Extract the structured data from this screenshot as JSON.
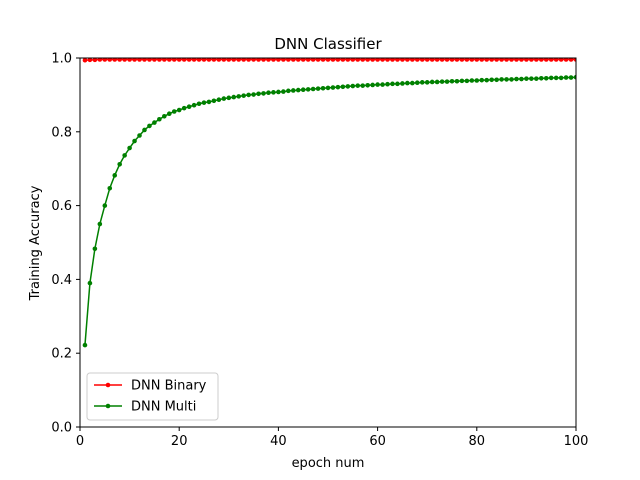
{
  "chart_data": {
    "type": "line",
    "title": "DNN Classifier",
    "xlabel": "epoch num",
    "ylabel": "Training Accuracy",
    "xlim": [
      0,
      100
    ],
    "ylim": [
      0.0,
      1.0
    ],
    "xticks": [
      "0",
      "20",
      "40",
      "60",
      "80",
      "100"
    ],
    "xtick_values": [
      0,
      20,
      40,
      60,
      80,
      100
    ],
    "yticks": [
      "0.0",
      "0.2",
      "0.4",
      "0.6",
      "0.8",
      "1.0"
    ],
    "ytick_values": [
      0.0,
      0.2,
      0.4,
      0.6,
      0.8,
      1.0
    ],
    "grid": false,
    "legend_position": "lower-left",
    "series": [
      {
        "name": "DNN Binary",
        "color": "#ff0000",
        "marker": "circle",
        "x": [
          1,
          2,
          3,
          4,
          5,
          6,
          7,
          8,
          9,
          10,
          11,
          12,
          13,
          14,
          15,
          16,
          17,
          18,
          19,
          20,
          21,
          22,
          23,
          24,
          25,
          26,
          27,
          28,
          29,
          30,
          31,
          32,
          33,
          34,
          35,
          36,
          37,
          38,
          39,
          40,
          41,
          42,
          43,
          44,
          45,
          46,
          47,
          48,
          49,
          50,
          51,
          52,
          53,
          54,
          55,
          56,
          57,
          58,
          59,
          60,
          61,
          62,
          63,
          64,
          65,
          66,
          67,
          68,
          69,
          70,
          71,
          72,
          73,
          74,
          75,
          76,
          77,
          78,
          79,
          80,
          81,
          82,
          83,
          84,
          85,
          86,
          87,
          88,
          89,
          90,
          91,
          92,
          93,
          94,
          95,
          96,
          97,
          98,
          99,
          100
        ],
        "values": [
          0.994,
          0.995,
          0.995,
          0.996,
          0.996,
          0.996,
          0.996,
          0.996,
          0.996,
          0.996,
          0.996,
          0.996,
          0.996,
          0.996,
          0.996,
          0.996,
          0.996,
          0.996,
          0.996,
          0.996,
          0.996,
          0.996,
          0.996,
          0.996,
          0.996,
          0.996,
          0.996,
          0.996,
          0.996,
          0.996,
          0.996,
          0.996,
          0.996,
          0.996,
          0.996,
          0.996,
          0.996,
          0.996,
          0.996,
          0.996,
          0.996,
          0.996,
          0.996,
          0.996,
          0.996,
          0.996,
          0.996,
          0.996,
          0.996,
          0.996,
          0.996,
          0.996,
          0.996,
          0.996,
          0.996,
          0.996,
          0.996,
          0.996,
          0.996,
          0.996,
          0.996,
          0.996,
          0.996,
          0.996,
          0.996,
          0.996,
          0.996,
          0.996,
          0.996,
          0.996,
          0.996,
          0.996,
          0.996,
          0.996,
          0.996,
          0.996,
          0.996,
          0.996,
          0.996,
          0.996,
          0.996,
          0.996,
          0.996,
          0.996,
          0.996,
          0.996,
          0.996,
          0.996,
          0.996,
          0.996,
          0.996,
          0.996,
          0.996,
          0.996,
          0.996,
          0.996,
          0.996,
          0.996,
          0.996,
          0.996
        ]
      },
      {
        "name": "DNN Multi",
        "color": "#008000",
        "marker": "circle",
        "x": [
          1,
          2,
          3,
          4,
          5,
          6,
          7,
          8,
          9,
          10,
          11,
          12,
          13,
          14,
          15,
          16,
          17,
          18,
          19,
          20,
          21,
          22,
          23,
          24,
          25,
          26,
          27,
          28,
          29,
          30,
          31,
          32,
          33,
          34,
          35,
          36,
          37,
          38,
          39,
          40,
          41,
          42,
          43,
          44,
          45,
          46,
          47,
          48,
          49,
          50,
          51,
          52,
          53,
          54,
          55,
          56,
          57,
          58,
          59,
          60,
          61,
          62,
          63,
          64,
          65,
          66,
          67,
          68,
          69,
          70,
          71,
          72,
          73,
          74,
          75,
          76,
          77,
          78,
          79,
          80,
          81,
          82,
          83,
          84,
          85,
          86,
          87,
          88,
          89,
          90,
          91,
          92,
          93,
          94,
          95,
          96,
          97,
          98,
          99,
          100
        ],
        "values": [
          0.222,
          0.39,
          0.483,
          0.55,
          0.6,
          0.647,
          0.682,
          0.712,
          0.736,
          0.756,
          0.775,
          0.79,
          0.805,
          0.816,
          0.825,
          0.834,
          0.842,
          0.849,
          0.855,
          0.859,
          0.864,
          0.868,
          0.872,
          0.876,
          0.879,
          0.881,
          0.884,
          0.887,
          0.89,
          0.892,
          0.894,
          0.896,
          0.898,
          0.9,
          0.901,
          0.903,
          0.904,
          0.906,
          0.907,
          0.908,
          0.909,
          0.911,
          0.912,
          0.913,
          0.914,
          0.915,
          0.916,
          0.917,
          0.918,
          0.919,
          0.92,
          0.921,
          0.922,
          0.923,
          0.924,
          0.925,
          0.925,
          0.926,
          0.927,
          0.928,
          0.928,
          0.929,
          0.93,
          0.93,
          0.931,
          0.932,
          0.932,
          0.933,
          0.934,
          0.934,
          0.935,
          0.935,
          0.936,
          0.936,
          0.937,
          0.937,
          0.938,
          0.938,
          0.939,
          0.939,
          0.94,
          0.94,
          0.941,
          0.941,
          0.942,
          0.942,
          0.942,
          0.943,
          0.943,
          0.944,
          0.944,
          0.944,
          0.945,
          0.945,
          0.946,
          0.946,
          0.946,
          0.947,
          0.947,
          0.948
        ]
      }
    ]
  }
}
